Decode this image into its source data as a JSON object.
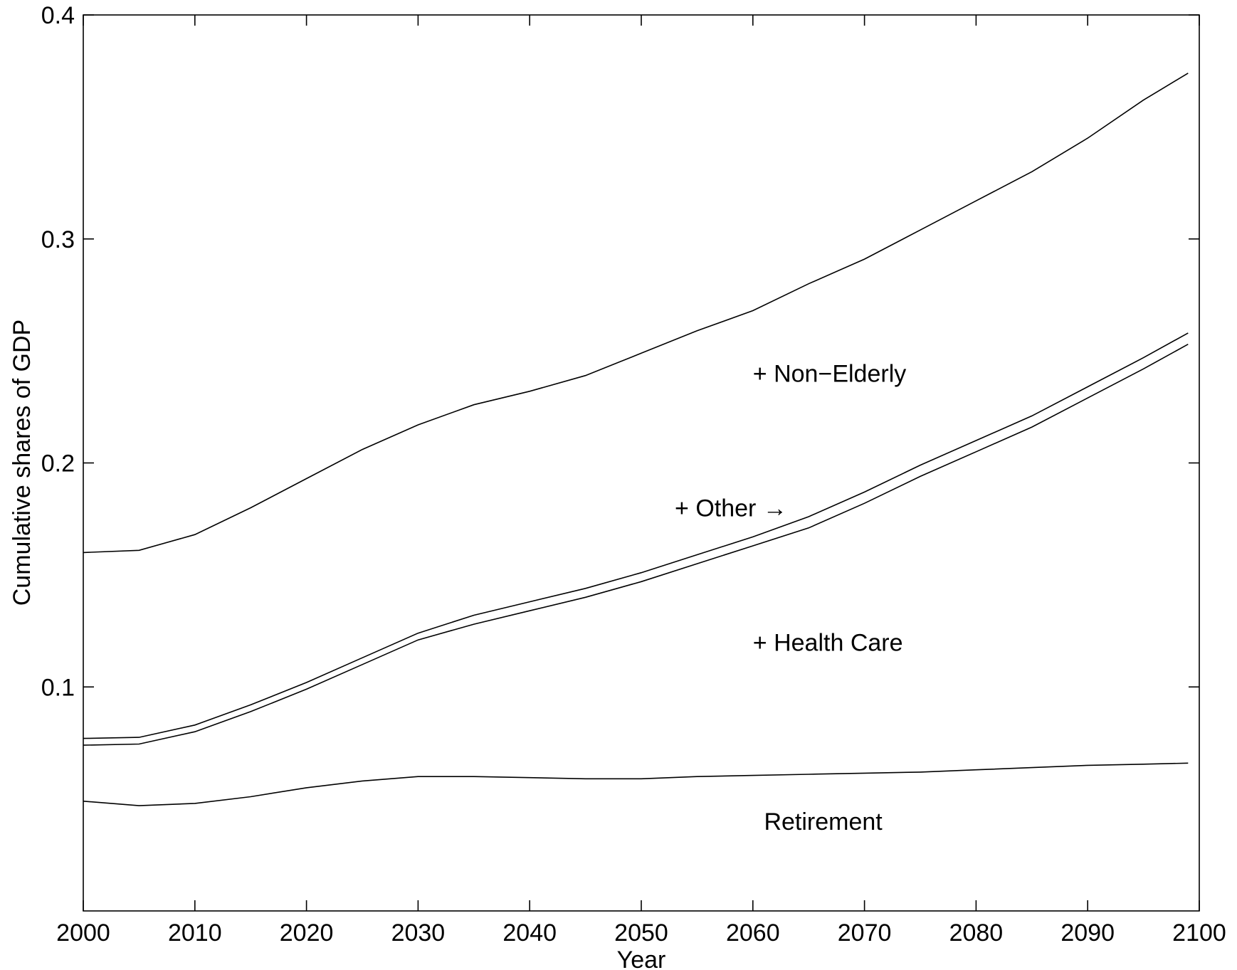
{
  "chart_data": {
    "type": "line",
    "title": "",
    "xlabel": "Year",
    "ylabel": "Cumulative shares of GDP",
    "xlim": [
      2000,
      2100
    ],
    "ylim": [
      0,
      0.4
    ],
    "x_ticks": [
      "2000",
      "2010",
      "2020",
      "2030",
      "2040",
      "2050",
      "2060",
      "2070",
      "2080",
      "2090",
      "2100"
    ],
    "y_ticks": [
      "0.1",
      "0.2",
      "0.3",
      "0.4"
    ],
    "grid": false,
    "legend": "none",
    "x": [
      2000,
      2005,
      2010,
      2015,
      2020,
      2025,
      2030,
      2035,
      2040,
      2045,
      2050,
      2055,
      2060,
      2065,
      2070,
      2075,
      2080,
      2085,
      2090,
      2095,
      2099
    ],
    "series": [
      {
        "values": [
          0.049,
          0.047,
          0.048,
          0.051,
          0.055,
          0.058,
          0.06,
          0.06,
          0.0595,
          0.059,
          0.059,
          0.06,
          0.0605,
          0.061,
          0.0615,
          0.062,
          0.063,
          0.064,
          0.065,
          0.0655,
          0.066
        ]
      },
      {
        "values": [
          0.074,
          0.0745,
          0.08,
          0.089,
          0.099,
          0.11,
          0.121,
          0.128,
          0.134,
          0.14,
          0.147,
          0.155,
          0.163,
          0.171,
          0.182,
          0.194,
          0.205,
          0.216,
          0.229,
          0.242,
          0.253
        ]
      },
      {
        "values": [
          0.077,
          0.0775,
          0.083,
          0.092,
          0.102,
          0.113,
          0.124,
          0.132,
          0.138,
          0.144,
          0.151,
          0.159,
          0.167,
          0.176,
          0.187,
          0.199,
          0.21,
          0.221,
          0.234,
          0.247,
          0.258
        ]
      },
      {
        "values": [
          0.16,
          0.161,
          0.168,
          0.18,
          0.193,
          0.206,
          0.217,
          0.226,
          0.232,
          0.239,
          0.249,
          0.259,
          0.268,
          0.28,
          0.291,
          0.304,
          0.317,
          0.33,
          0.345,
          0.362,
          0.374
        ]
      }
    ],
    "annotations": [
      {
        "text": "+ Non−Elderly",
        "x": 2060,
        "y": 0.24
      },
      {
        "text": "+ Other →",
        "x": 2053,
        "y": 0.18
      },
      {
        "text": "+ Health Care",
        "x": 2060,
        "y": 0.12
      },
      {
        "text": "Retirement",
        "x": 2061,
        "y": 0.04
      }
    ]
  }
}
